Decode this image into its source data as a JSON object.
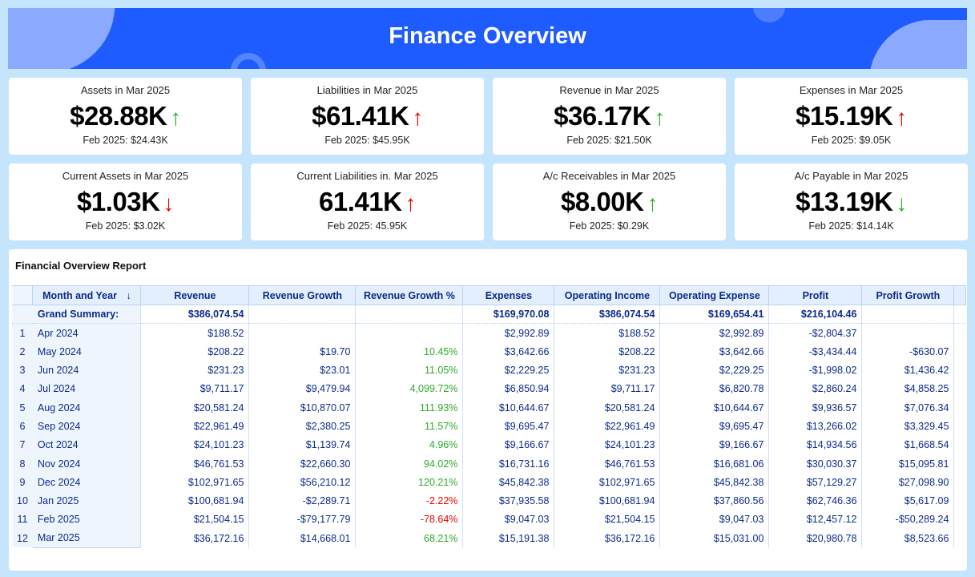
{
  "header": {
    "title": "Finance Overview"
  },
  "colors": {
    "up_good": "#3cb93c",
    "up_bad": "#e00000",
    "header": "#1f5cff",
    "background": "#c4e5fb"
  },
  "kpis": [
    {
      "title": "Assets in Mar 2025",
      "value": "$28.88K",
      "arrow": "↑",
      "arrow_color": "g",
      "prev": "Feb 2025: $24.43K"
    },
    {
      "title": "Liabilities in Mar 2025",
      "value": "$61.41K",
      "arrow": "↑",
      "arrow_color": "r",
      "prev": "Feb 2025: $45.95K"
    },
    {
      "title": "Revenue in Mar 2025",
      "value": "$36.17K",
      "arrow": "↑",
      "arrow_color": "g",
      "prev": "Feb 2025: $21.50K"
    },
    {
      "title": "Expenses in Mar 2025",
      "value": "$15.19K",
      "arrow": "↑",
      "arrow_color": "r",
      "prev": "Feb 2025: $9.05K"
    },
    {
      "title": "Current Assets in Mar 2025",
      "value": "$1.03K",
      "arrow": "↓",
      "arrow_color": "r",
      "prev": "Feb 2025: $3.02K"
    },
    {
      "title": "Current Liabilities in. Mar 2025",
      "value": "61.41K",
      "arrow": "↑",
      "arrow_color": "r",
      "prev": "Feb 2025: 45.95K"
    },
    {
      "title": "A/c Receivables in Mar 2025",
      "value": "$8.00K",
      "arrow": "↑",
      "arrow_color": "g",
      "prev": "Feb 2025: $0.29K"
    },
    {
      "title": "A/c Payable in Mar 2025",
      "value": "$13.19K",
      "arrow": "↓",
      "arrow_color": "g",
      "prev": "Feb 2025: $14.14K"
    }
  ],
  "report": {
    "title": "Financial Overview Report",
    "sort_icon": "arrow-down-icon",
    "columns": [
      "Month and Year",
      "Revenue",
      "Revenue Growth",
      "Revenue Growth %",
      "Expenses",
      "Operating Income",
      "Operating Expense",
      "Profit",
      "Profit Growth"
    ],
    "summary": [
      "Grand Summary:",
      "$386,074.54",
      "",
      "",
      "$169,970.08",
      "$386,074.54",
      "$169,654.41",
      "$216,104.46",
      ""
    ],
    "rows": [
      [
        "Apr 2024",
        "$188.52",
        "",
        "",
        "$2,992.89",
        "$188.52",
        "$2,992.89",
        "-$2,804.37",
        ""
      ],
      [
        "May 2024",
        "$208.22",
        "$19.70",
        "10.45%",
        "$3,642.66",
        "$208.22",
        "$3,642.66",
        "-$3,434.44",
        "-$630.07"
      ],
      [
        "Jun 2024",
        "$231.23",
        "$23.01",
        "11.05%",
        "$2,229.25",
        "$231.23",
        "$2,229.25",
        "-$1,998.02",
        "$1,436.42"
      ],
      [
        "Jul 2024",
        "$9,711.17",
        "$9,479.94",
        "4,099.72%",
        "$6,850.94",
        "$9,711.17",
        "$6,820.78",
        "$2,860.24",
        "$4,858.25"
      ],
      [
        "Aug 2024",
        "$20,581.24",
        "$10,870.07",
        "111.93%",
        "$10,644.67",
        "$20,581.24",
        "$10,644.67",
        "$9,936.57",
        "$7,076.34"
      ],
      [
        "Sep 2024",
        "$22,961.49",
        "$2,380.25",
        "11.57%",
        "$9,695.47",
        "$22,961.49",
        "$9,695.47",
        "$13,266.02",
        "$3,329.45"
      ],
      [
        "Oct 2024",
        "$24,101.23",
        "$1,139.74",
        "4.96%",
        "$9,166.67",
        "$24,101.23",
        "$9,166.67",
        "$14,934.56",
        "$1,668.54"
      ],
      [
        "Nov 2024",
        "$46,761.53",
        "$22,660.30",
        "94.02%",
        "$16,731.16",
        "$46,761.53",
        "$16,681.06",
        "$30,030.37",
        "$15,095.81"
      ],
      [
        "Dec 2024",
        "$102,971.65",
        "$56,210.12",
        "120.21%",
        "$45,842.38",
        "$102,971.65",
        "$45,842.38",
        "$57,129.27",
        "$27,098.90"
      ],
      [
        "Jan 2025",
        "$100,681.94",
        "-$2,289.71",
        "-2.22%",
        "$37,935.58",
        "$100,681.94",
        "$37,860.56",
        "$62,746.36",
        "$5,617.09"
      ],
      [
        "Feb 2025",
        "$21,504.15",
        "-$79,177.79",
        "-78.64%",
        "$9,047.03",
        "$21,504.15",
        "$9,047.03",
        "$12,457.12",
        "-$50,289.24"
      ],
      [
        "Mar 2025",
        "$36,172.16",
        "$14,668.01",
        "68.21%",
        "$15,191.38",
        "$36,172.16",
        "$15,031.00",
        "$20,980.78",
        "$8,523.66"
      ]
    ]
  }
}
